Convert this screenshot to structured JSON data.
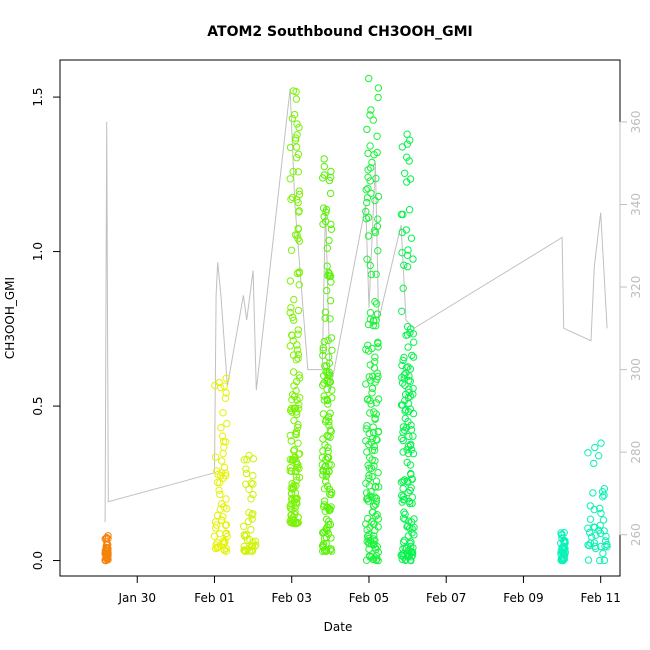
{
  "chart_data": {
    "type": "scatter",
    "title": "ATOM2 Southbound CH3OOH_GMI",
    "xlabel": "Date",
    "ylabel": "CH3OOH_GMI",
    "xlim": [
      "2017-01-28T00:00",
      "2017-02-11T12:00"
    ],
    "ylim": [
      -0.05,
      1.62
    ],
    "x_ticks": [
      "Jan 30",
      "Feb 01",
      "Feb 03",
      "Feb 05",
      "Feb 07",
      "Feb 09",
      "Feb 11"
    ],
    "y_ticks": [
      "0.0",
      "0.5",
      "1.0",
      "1.5"
    ],
    "y2_ticks": [
      "260",
      "280",
      "300",
      "320",
      "340",
      "360"
    ],
    "y2lim": [
      250,
      375
    ],
    "y2_color": "#c0c0c0",
    "grid": false,
    "marker": "open-circle",
    "flights": [
      {
        "start": "2017-01-29T04:00",
        "end": "2017-01-29T06:00",
        "ymin": 0.0,
        "ymax": 0.08,
        "color": "#f5820a"
      },
      {
        "start": "2017-02-01T00:00",
        "end": "2017-02-01T08:00",
        "ymin": 0.03,
        "ymax": 0.59,
        "color": "#e4f20a"
      },
      {
        "start": "2017-02-01T18:00",
        "end": "2017-02-02T02:00",
        "ymin": 0.03,
        "ymax": 0.34,
        "color": "#d0f20a"
      },
      {
        "start": "2017-02-02T23:00",
        "end": "2017-02-03T05:00",
        "ymin": 0.12,
        "ymax": 1.52,
        "color": "#7cf20a"
      },
      {
        "start": "2017-02-03T19:00",
        "end": "2017-02-04T01:00",
        "ymin": 0.03,
        "ymax": 1.3,
        "color": "#5af20a"
      },
      {
        "start": "2017-02-04T22:00",
        "end": "2017-02-05T06:00",
        "ymin": 0.0,
        "ymax": 1.56,
        "color": "#1ef23c"
      },
      {
        "start": "2017-02-05T20:00",
        "end": "2017-02-06T04:00",
        "ymin": 0.0,
        "ymax": 1.38,
        "color": "#0af24e"
      },
      {
        "start": "2017-02-09T23:00",
        "end": "2017-02-10T02:00",
        "ymin": 0.0,
        "ymax": 0.09,
        "color": "#0af2b8"
      },
      {
        "start": "2017-02-10T16:00",
        "end": "2017-02-11T04:00",
        "ymin": 0.0,
        "ymax": 0.38,
        "color": "#0af2b4"
      }
    ],
    "pressure_trace": {
      "color": "#c0c0c0",
      "points": [
        [
          "2017-01-29T04:00",
          263
        ],
        [
          "2017-01-29T05:00",
          360
        ],
        [
          "2017-01-29T06:00",
          268
        ],
        [
          "2017-02-01T00:00",
          275
        ],
        [
          "2017-02-01T01:00",
          318
        ],
        [
          "2017-02-01T02:00",
          326
        ],
        [
          "2017-02-01T04:00",
          318
        ],
        [
          "2017-02-01T08:00",
          296
        ],
        [
          "2017-02-01T18:00",
          318
        ],
        [
          "2017-02-01T20:00",
          312
        ],
        [
          "2017-02-02T00:00",
          324
        ],
        [
          "2017-02-02T02:00",
          295
        ],
        [
          "2017-02-02T23:00",
          368
        ],
        [
          "2017-02-03T02:00",
          340
        ],
        [
          "2017-02-03T10:00",
          300
        ],
        [
          "2017-02-03T19:00",
          300
        ],
        [
          "2017-02-03T21:00",
          340
        ],
        [
          "2017-02-04T00:00",
          295
        ],
        [
          "2017-02-04T22:00",
          340
        ],
        [
          "2017-02-05T00:00",
          315
        ],
        [
          "2017-02-05T04:00",
          350
        ],
        [
          "2017-02-05T06:00",
          312
        ],
        [
          "2017-02-05T20:00",
          335
        ],
        [
          "2017-02-05T23:00",
          312
        ],
        [
          "2017-02-06T04:00",
          310
        ],
        [
          "2017-02-10T00:00",
          332
        ],
        [
          "2017-02-10T01:00",
          310
        ],
        [
          "2017-02-10T18:00",
          307
        ],
        [
          "2017-02-10T20:00",
          325
        ],
        [
          "2017-02-11T00:00",
          338
        ],
        [
          "2017-02-11T04:00",
          310
        ]
      ]
    }
  }
}
